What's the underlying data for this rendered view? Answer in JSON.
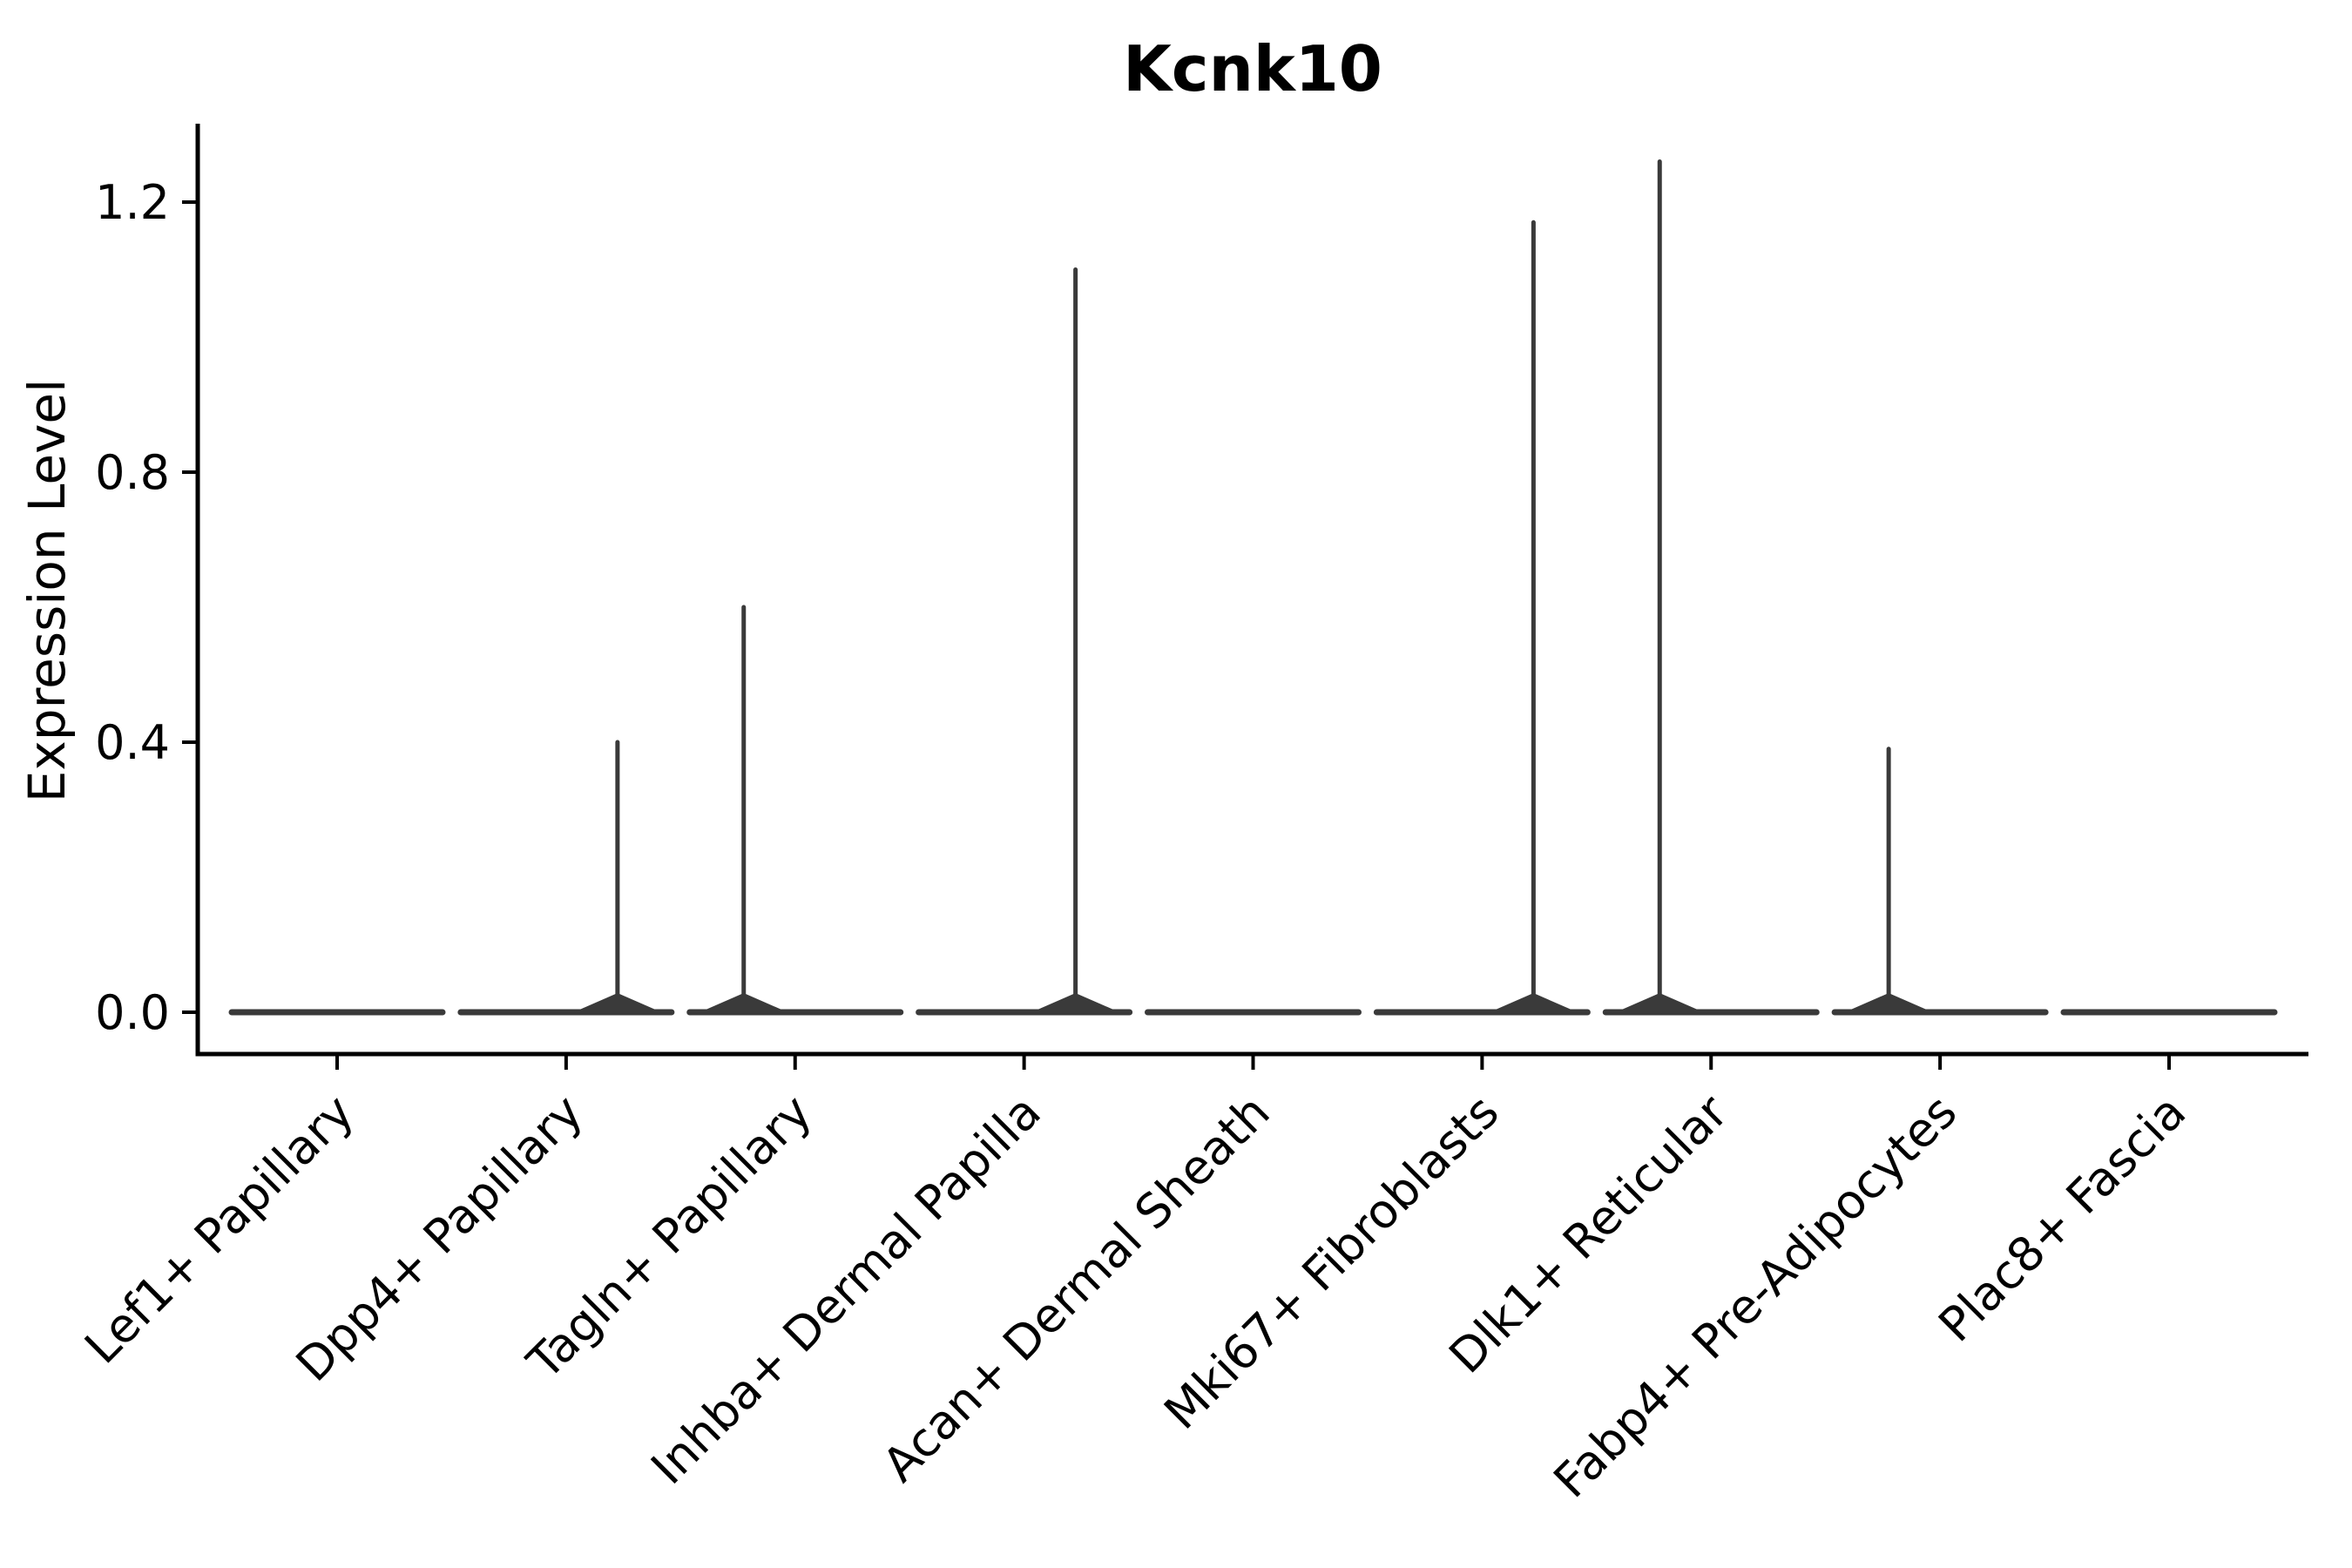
{
  "figure": {
    "background_color": "#ffffff",
    "axis_color": "#000000",
    "violin_color": "#3a3a3a"
  },
  "chart_data": {
    "type": "violin",
    "title": "Kcnk10",
    "xlabel": "",
    "ylabel": "Expression Level",
    "yticks": [
      "0.0",
      "0.4",
      "0.8",
      "1.2"
    ],
    "ytick_values": [
      0.0,
      0.4,
      0.8,
      1.2
    ],
    "ylim": [
      -0.06,
      1.32
    ],
    "grid": false,
    "legend": "none",
    "categories": [
      "Lef1+ Papillary",
      "Dpp4+ Papillary",
      "Tagln+ Papillary",
      "Inhba+ Dermal Papilla",
      "Acan+ Dermal Sheath",
      "Mki67+ Fibroblasts",
      "Dlk1+ Reticular",
      "Fabp4+ Pre-Adipocytes",
      "Plac8+ Fascia"
    ],
    "violins": [
      {
        "label": "Lef1+ Papillary",
        "baseline_value": 0.0,
        "max_value": 0.0,
        "spike_side": "none"
      },
      {
        "label": "Dpp4+ Papillary",
        "baseline_value": 0.0,
        "max_value": 0.4,
        "spike_side": "right"
      },
      {
        "label": "Tagln+ Papillary",
        "baseline_value": 0.0,
        "max_value": 0.6,
        "spike_side": "left"
      },
      {
        "label": "Inhba+ Dermal Papilla",
        "baseline_value": 0.0,
        "max_value": 1.1,
        "spike_side": "right"
      },
      {
        "label": "Acan+ Dermal Sheath",
        "baseline_value": 0.0,
        "max_value": 0.0,
        "spike_side": "none"
      },
      {
        "label": "Mki67+ Fibroblasts",
        "baseline_value": 0.0,
        "max_value": 1.17,
        "spike_side": "right"
      },
      {
        "label": "Dlk1+ Reticular",
        "baseline_value": 0.0,
        "max_value": 1.26,
        "spike_side": "left"
      },
      {
        "label": "Fabp4+ Pre-Adipocytes",
        "baseline_value": 0.0,
        "max_value": 0.39,
        "spike_side": "left"
      },
      {
        "label": "Plac8+ Fascia",
        "baseline_value": 0.0,
        "max_value": 0.0,
        "spike_side": "none"
      }
    ]
  }
}
